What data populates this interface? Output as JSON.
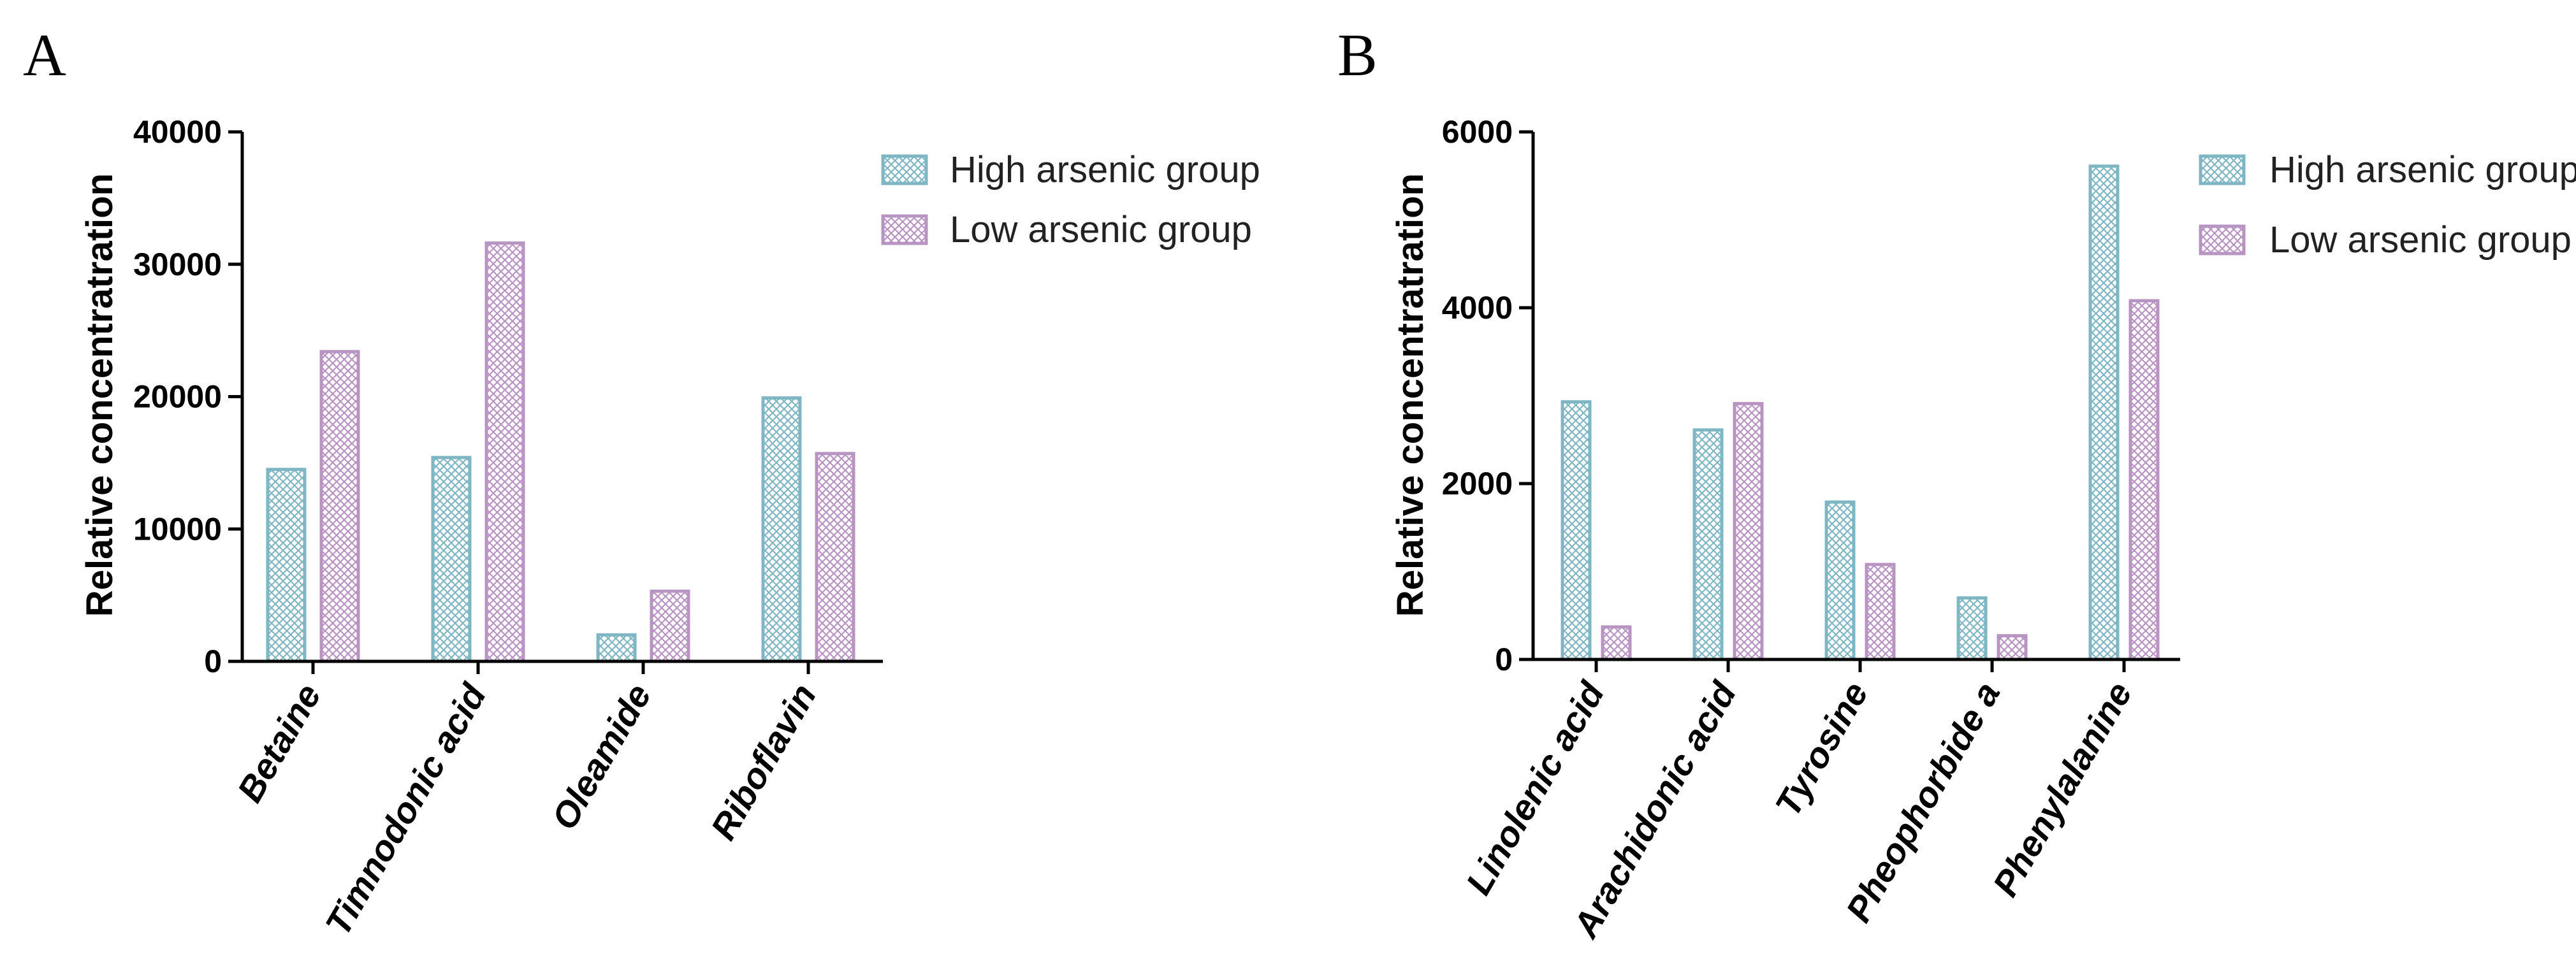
{
  "colors": {
    "high": "#7fb6c4",
    "low": "#b894c2"
  },
  "chart_data": [
    {
      "panel": "A",
      "type": "bar",
      "categories": [
        "Betaine",
        "Timnodonic acid",
        "Oleamide",
        "Riboflavin"
      ],
      "series": [
        {
          "name": "High arsenic group",
          "values": [
            14500,
            15400,
            2000,
            19900
          ]
        },
        {
          "name": "Low arsenic group",
          "values": [
            23400,
            31600,
            5300,
            15700
          ]
        }
      ],
      "ylabel": "Relative concentratration",
      "xlabel": "",
      "ylim": [
        0,
        40000
      ],
      "yticks": [
        "0",
        "10000",
        "20000",
        "30000",
        "40000"
      ],
      "legend": "top-right"
    },
    {
      "panel": "B",
      "type": "bar",
      "categories": [
        "Linolenic acid",
        "Arachidonic acid",
        "Tyrosine",
        "Pheophorbide a",
        "Phenylalanine"
      ],
      "series": [
        {
          "name": "High arsenic group",
          "values": [
            2930,
            2610,
            1790,
            700,
            5610
          ]
        },
        {
          "name": "Low arsenic group",
          "values": [
            370,
            2910,
            1080,
            270,
            4080
          ]
        }
      ],
      "ylabel": "Relative concentratration",
      "xlabel": "",
      "ylim": [
        0,
        6000
      ],
      "yticks": [
        "0",
        "2000",
        "4000",
        "6000"
      ],
      "legend": "top-right"
    }
  ]
}
